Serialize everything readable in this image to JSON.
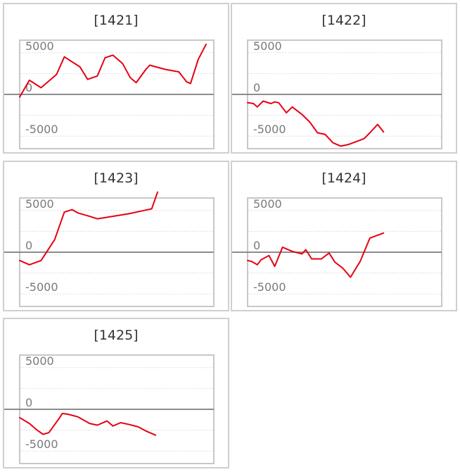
{
  "colors": {
    "series": "#e60012",
    "zero_line": "#8c8c8c",
    "grid": "#dddddd",
    "frame": "#c8c8c8"
  },
  "chart_data": [
    {
      "type": "line",
      "title": "[1421]",
      "ylim": [
        -6500,
        6500
      ],
      "grid": true,
      "yticks": [
        {
          "value": 5000,
          "label": "5000"
        },
        {
          "value": 0,
          "label": "0"
        },
        {
          "value": -5000,
          "label": "-5000"
        }
      ],
      "series": [
        {
          "x": [
            0,
            2,
            5,
            11,
            19,
            23,
            31,
            35,
            40,
            44,
            48,
            53,
            57,
            60,
            65,
            67,
            75,
            82,
            86,
            88,
            92,
            96
          ],
          "y": [
            -300,
            500,
            1700,
            800,
            2400,
            4500,
            3300,
            1800,
            2200,
            4400,
            4700,
            3700,
            2000,
            1400,
            3000,
            3500,
            3000,
            2700,
            1500,
            1300,
            4200,
            6000
          ]
        }
      ]
    },
    {
      "type": "line",
      "title": "[1422]",
      "ylim": [
        -6500,
        6500
      ],
      "grid": true,
      "yticks": [
        {
          "value": 5000,
          "label": "5000"
        },
        {
          "value": 0,
          "label": "0"
        },
        {
          "value": -5000,
          "label": "-5000"
        }
      ],
      "series": [
        {
          "x": [
            0,
            3,
            5,
            8,
            12,
            14,
            16,
            20,
            23,
            28,
            32,
            36,
            40,
            44,
            48,
            52,
            60,
            63,
            67,
            70
          ],
          "y": [
            -1000,
            -1100,
            -1500,
            -800,
            -1100,
            -900,
            -1000,
            -2200,
            -1500,
            -2400,
            -3300,
            -4600,
            -4800,
            -5800,
            -6200,
            -6000,
            -5300,
            -4600,
            -3600,
            -4500
          ]
        }
      ]
    },
    {
      "type": "line",
      "title": "[1423]",
      "ylim": [
        -6500,
        6500
      ],
      "grid": true,
      "yticks": [
        {
          "value": 5000,
          "label": "5000"
        },
        {
          "value": 0,
          "label": "0"
        },
        {
          "value": -5000,
          "label": "-5000"
        }
      ],
      "series": [
        {
          "x": [
            0,
            5,
            11,
            18,
            23,
            27,
            30,
            36,
            40,
            56,
            64,
            68,
            71
          ],
          "y": [
            -1000,
            -1500,
            -1000,
            1500,
            4800,
            5100,
            4700,
            4300,
            4000,
            4600,
            5000,
            5200,
            7200
          ]
        }
      ]
    },
    {
      "type": "line",
      "title": "[1424]",
      "ylim": [
        -6500,
        6500
      ],
      "grid": true,
      "yticks": [
        {
          "value": 5000,
          "label": "5000"
        },
        {
          "value": 0,
          "label": "0"
        },
        {
          "value": -5000,
          "label": "-5000"
        }
      ],
      "series": [
        {
          "x": [
            0,
            2,
            5,
            7,
            11,
            14,
            18,
            23,
            28,
            30,
            33,
            38,
            42,
            45,
            49,
            53,
            58,
            63,
            70
          ],
          "y": [
            -1000,
            -1100,
            -1500,
            -900,
            -400,
            -1700,
            600,
            100,
            -200,
            300,
            -800,
            -800,
            -100,
            -1200,
            -1900,
            -3000,
            -1100,
            1700,
            2300
          ]
        }
      ]
    },
    {
      "type": "line",
      "title": "[1425]",
      "ylim": [
        -6500,
        6500
      ],
      "grid": true,
      "yticks": [
        {
          "value": 5000,
          "label": "5000"
        },
        {
          "value": 0,
          "label": "0"
        },
        {
          "value": -5000,
          "label": "-5000"
        }
      ],
      "series": [
        {
          "x": [
            0,
            5,
            9,
            12,
            15,
            20,
            22,
            25,
            30,
            36,
            40,
            45,
            48,
            52,
            56,
            61,
            65,
            70
          ],
          "y": [
            -1000,
            -1700,
            -2500,
            -3000,
            -2800,
            -1200,
            -500,
            -600,
            -900,
            -1700,
            -1900,
            -1400,
            -2000,
            -1600,
            -1800,
            -2100,
            -2600,
            -3100
          ]
        }
      ]
    }
  ]
}
